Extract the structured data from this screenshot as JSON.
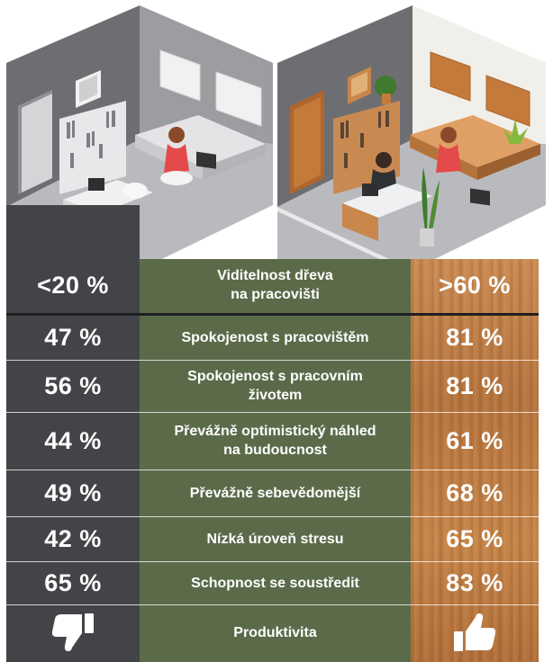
{
  "header": {
    "left_value": "<20 %",
    "label": "Viditelnost dřeva\nna pracovišti",
    "right_value": ">60 %"
  },
  "rows": [
    {
      "left": "47 %",
      "label": "Spokojenost s pracovištěm",
      "right": "81 %"
    },
    {
      "left": "56 %",
      "label": "Spokojenost s pracovním\nživotem",
      "right": "81 %"
    },
    {
      "left": "44 %",
      "label": "Převážně optimistický náhled\nna budoucnost",
      "right": "61 %"
    },
    {
      "left": "49 %",
      "label": "Převážně sebevědomější",
      "right": "68 %"
    },
    {
      "left": "42 %",
      "label": "Nízká úroveň stresu",
      "right": "65 %"
    },
    {
      "left": "65 %",
      "label": "Schopnost se soustředit",
      "right": "83 %"
    }
  ],
  "footer": {
    "label": "Produktivita",
    "left_icon": "thumbs-down-icon",
    "right_icon": "thumbs-up-icon"
  },
  "colors": {
    "dark_column": "#434448",
    "green_column": "#5b6b4a",
    "wood_column": "#c07d45",
    "text": "#ffffff"
  }
}
